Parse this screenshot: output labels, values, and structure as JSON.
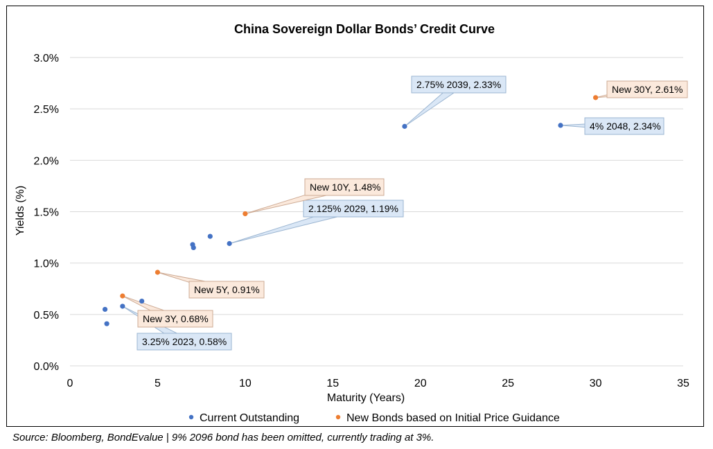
{
  "chart_data": {
    "type": "scatter",
    "title": "China Sovereign Dollar Bonds’ Credit Curve",
    "xlabel": "Maturity (Years)",
    "ylabel": "Yields (%)",
    "xlim": [
      0,
      35
    ],
    "ylim": [
      0,
      3.0
    ],
    "x_ticks": [
      "0",
      "5",
      "10",
      "15",
      "20",
      "25",
      "30",
      "35"
    ],
    "y_ticks": [
      "0.0%",
      "0.5%",
      "1.0%",
      "1.5%",
      "2.0%",
      "2.5%",
      "3.0%"
    ],
    "grid": "horizontal",
    "legend_position": "bottom",
    "series": [
      {
        "name": "Current Outstanding",
        "color": "#4472C4",
        "points": [
          {
            "x": 2.0,
            "y": 0.55
          },
          {
            "x": 2.1,
            "y": 0.41
          },
          {
            "x": 3.0,
            "y": 0.58,
            "label": "3.25% 2023, 0.58%"
          },
          {
            "x": 4.1,
            "y": 0.63
          },
          {
            "x": 7.0,
            "y": 1.18
          },
          {
            "x": 7.05,
            "y": 1.15
          },
          {
            "x": 8.0,
            "y": 1.26
          },
          {
            "x": 9.1,
            "y": 1.19,
            "label": "2.125% 2029, 1.19%"
          },
          {
            "x": 19.1,
            "y": 2.33,
            "label": "2.75% 2039, 2.33%"
          },
          {
            "x": 28.0,
            "y": 2.34,
            "label": "4% 2048, 2.34%"
          }
        ]
      },
      {
        "name": "New Bonds based on Initial Price Guidance",
        "color": "#ED7D31",
        "points": [
          {
            "x": 3.0,
            "y": 0.68,
            "label": "New 3Y, 0.68%"
          },
          {
            "x": 5.0,
            "y": 0.91,
            "label": "New 5Y, 0.91%"
          },
          {
            "x": 10.0,
            "y": 1.48,
            "label": "New 10Y, 1.48%"
          },
          {
            "x": 30.0,
            "y": 2.61,
            "label": "New 30Y, 2.61%"
          }
        ]
      }
    ]
  },
  "source_note": "Source: Bloomberg, BondEvalue | 9% 2096 bond has been omitted, currently trading at 3%."
}
